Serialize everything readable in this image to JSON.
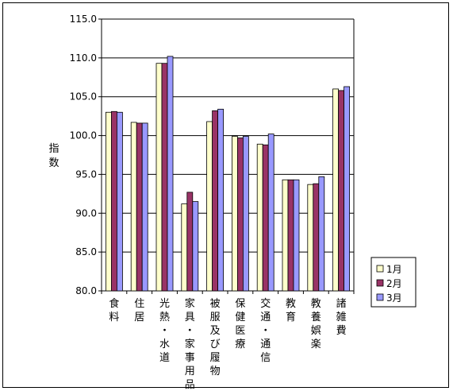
{
  "chart_data": {
    "type": "bar",
    "ylabel": "指数",
    "ylim": [
      80,
      115
    ],
    "ytick_step": 5,
    "yticks": [
      "80.0",
      "85.0",
      "90.0",
      "95.0",
      "100.0",
      "105.0",
      "110.0",
      "115.0"
    ],
    "grid": true,
    "legend_position": "right",
    "categories": [
      "食料",
      "住居",
      "光熱・水道",
      "家具・家事用品",
      "被服及び履物",
      "保健医療",
      "交通・通信",
      "教育",
      "教養娯楽",
      "諸雑費"
    ],
    "series": [
      {
        "name": "1月",
        "color": "#ffffcc",
        "values": [
          103.0,
          101.7,
          109.3,
          91.2,
          101.8,
          99.9,
          98.9,
          94.3,
          93.7,
          106.0
        ]
      },
      {
        "name": "2月",
        "color": "#993366",
        "values": [
          103.1,
          101.6,
          109.3,
          92.7,
          103.2,
          99.7,
          98.8,
          94.3,
          93.8,
          105.8
        ]
      },
      {
        "name": "3月",
        "color": "#9999ff",
        "values": [
          103.0,
          101.6,
          110.2,
          91.5,
          103.4,
          99.9,
          100.2,
          94.3,
          94.7,
          106.3
        ]
      }
    ]
  }
}
